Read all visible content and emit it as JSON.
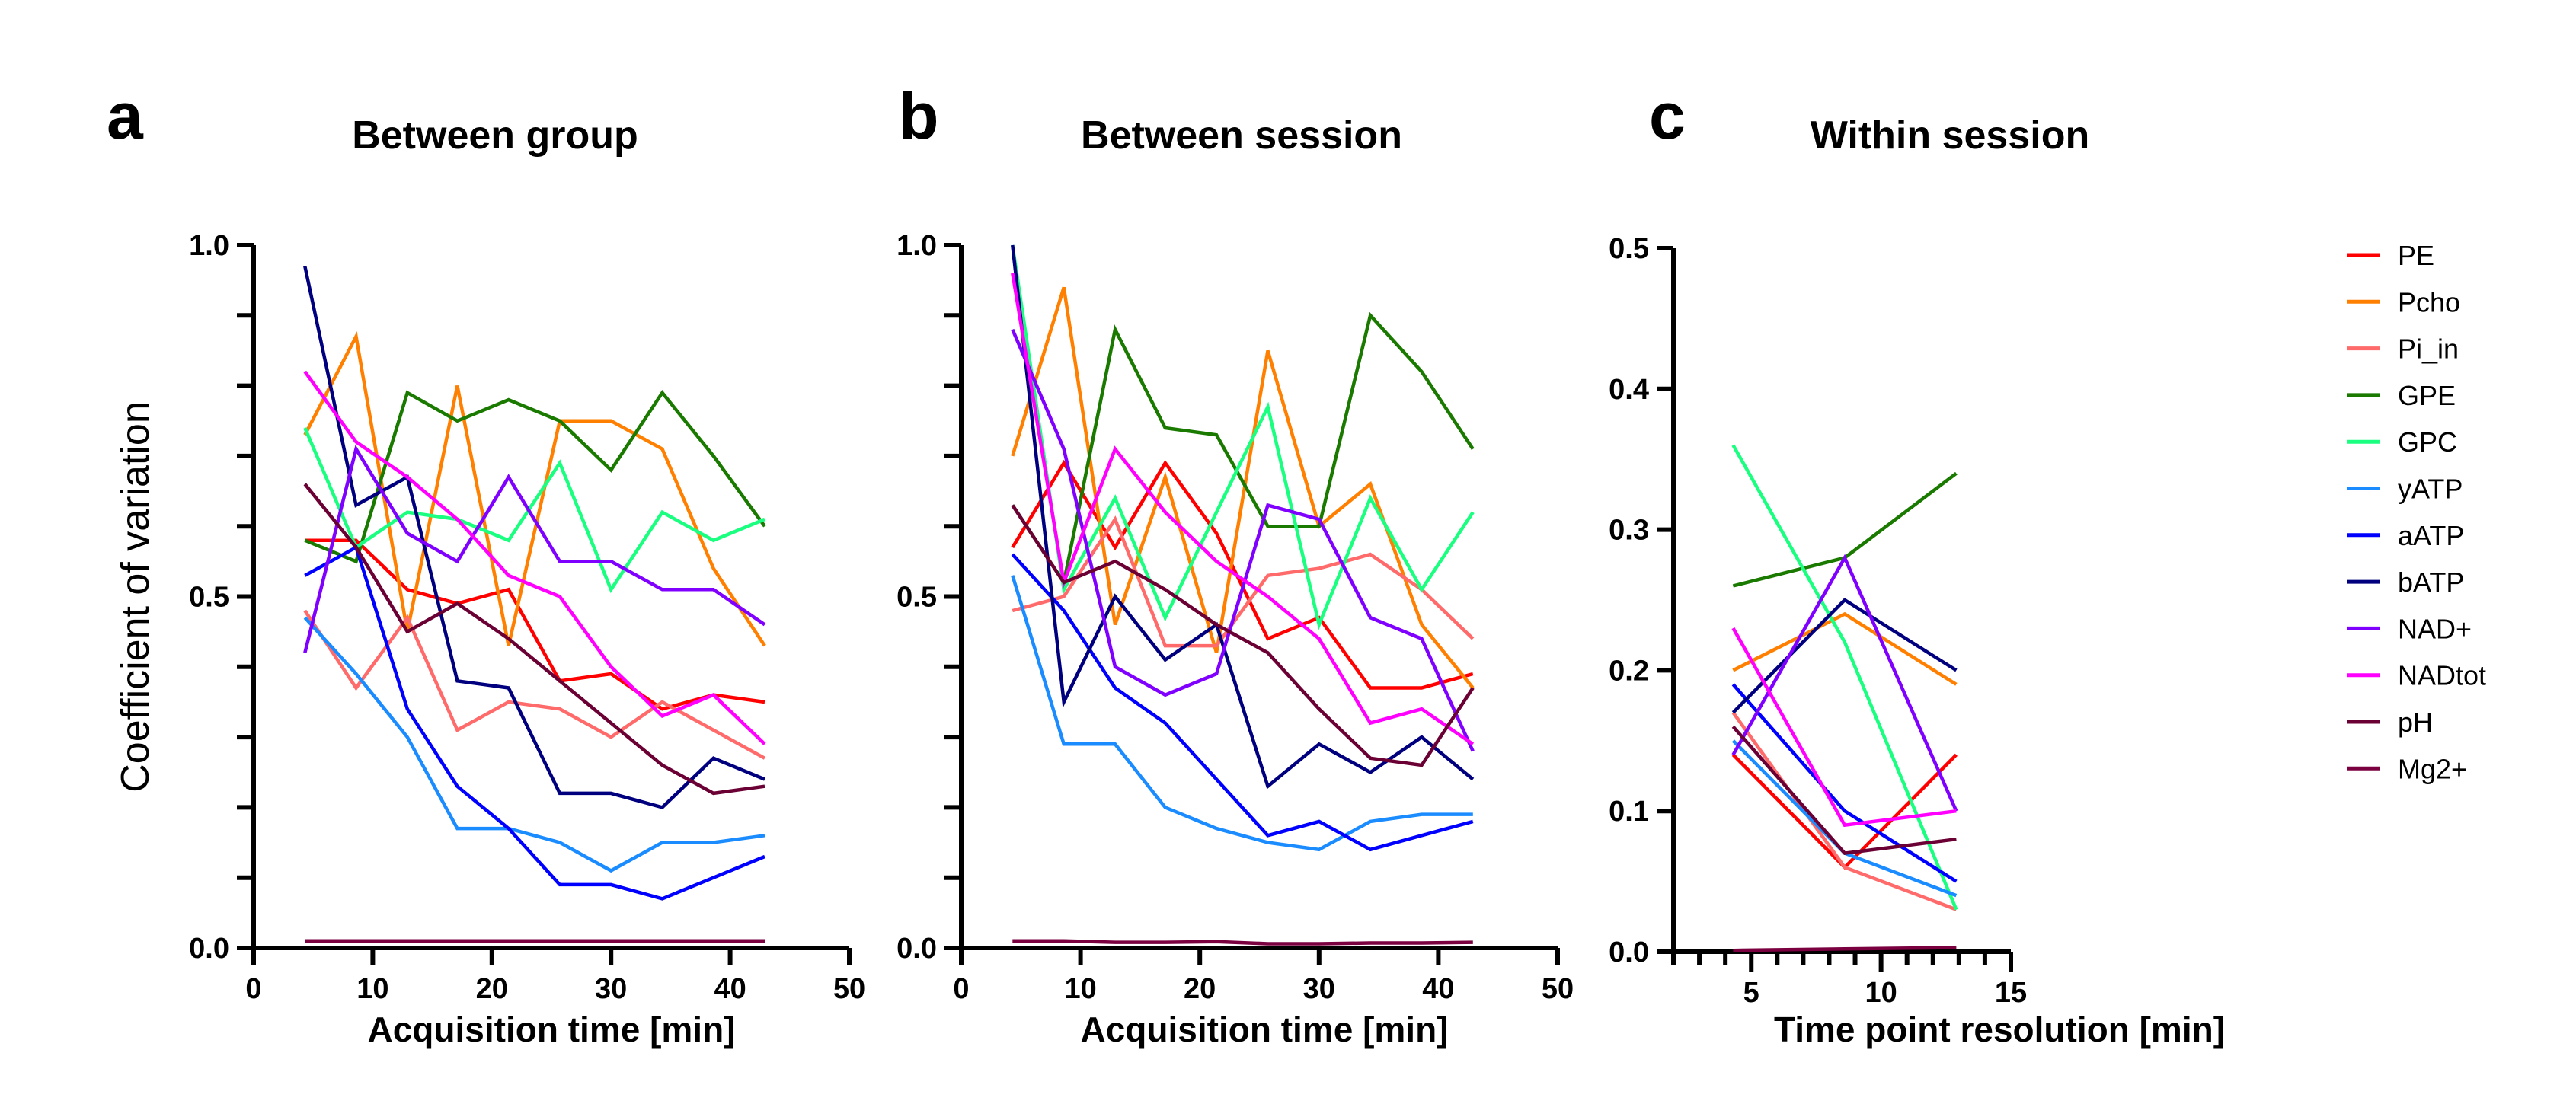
{
  "chart_data": [
    {
      "type": "line",
      "panel": "a",
      "title": "Between group",
      "xlabel": "Acquisition time [min]",
      "ylabel": "Coefficient of variation",
      "xlim": [
        0,
        50
      ],
      "ylim": [
        0,
        1.0
      ],
      "xticks": [
        "0",
        "10",
        "20",
        "30",
        "40",
        "50"
      ],
      "yticks": [
        "0.0",
        "0.5",
        "1.0"
      ],
      "x": [
        4.3,
        8.6,
        12.9,
        17.1,
        21.4,
        25.7,
        30,
        34.3,
        38.6,
        42.9
      ],
      "series": [
        {
          "name": "PE",
          "values": [
            0.58,
            0.58,
            0.51,
            0.49,
            0.51,
            0.38,
            0.39,
            0.34,
            0.36,
            0.35
          ]
        },
        {
          "name": "Pcho",
          "values": [
            0.73,
            0.87,
            0.45,
            0.8,
            0.43,
            0.75,
            0.75,
            0.71,
            0.54,
            0.43
          ]
        },
        {
          "name": "Pi_in",
          "values": [
            0.48,
            0.37,
            0.47,
            0.31,
            0.35,
            0.34,
            0.3,
            0.35,
            0.31,
            0.27
          ]
        },
        {
          "name": "GPE",
          "values": [
            0.58,
            0.55,
            0.79,
            0.75,
            0.78,
            0.75,
            0.68,
            0.79,
            0.7,
            0.6
          ]
        },
        {
          "name": "GPC",
          "values": [
            0.74,
            0.57,
            0.62,
            0.61,
            0.58,
            0.69,
            0.51,
            0.62,
            0.58,
            0.61
          ]
        },
        {
          "name": "yATP",
          "values": [
            0.47,
            0.39,
            0.3,
            0.17,
            0.17,
            0.15,
            0.11,
            0.15,
            0.15,
            0.16
          ]
        },
        {
          "name": "aATP",
          "values": [
            0.53,
            0.57,
            0.34,
            0.23,
            0.17,
            0.09,
            0.09,
            0.07,
            0.1,
            0.13
          ]
        },
        {
          "name": "bATP",
          "values": [
            0.97,
            0.63,
            0.67,
            0.38,
            0.37,
            0.22,
            0.22,
            0.2,
            0.27,
            0.24
          ]
        },
        {
          "name": "NAD+",
          "values": [
            0.42,
            0.71,
            0.59,
            0.55,
            0.67,
            0.55,
            0.55,
            0.51,
            0.51,
            0.46
          ]
        },
        {
          "name": "NADtot",
          "values": [
            0.82,
            0.72,
            0.67,
            0.61,
            0.53,
            0.5,
            0.4,
            0.33,
            0.36,
            0.29
          ]
        },
        {
          "name": "pH",
          "values": [
            0.66,
            0.57,
            0.45,
            0.49,
            0.44,
            0.38,
            0.32,
            0.26,
            0.22,
            0.23
          ]
        },
        {
          "name": "Mg2+",
          "values": [
            0.01,
            0.01,
            0.01,
            0.01,
            0.01,
            0.01,
            0.01,
            0.01,
            0.01,
            0.01
          ]
        }
      ]
    },
    {
      "type": "line",
      "panel": "b",
      "title": "Between session",
      "xlabel": "Acquisition time [min]",
      "ylabel": "",
      "xlim": [
        0,
        50
      ],
      "ylim": [
        0,
        1.0
      ],
      "xticks": [
        "0",
        "10",
        "20",
        "30",
        "40",
        "50"
      ],
      "yticks": [
        "0.0",
        "0.5",
        "1.0"
      ],
      "x": [
        4.3,
        8.6,
        12.9,
        17.1,
        21.4,
        25.7,
        30,
        34.3,
        38.6,
        42.9
      ],
      "series": [
        {
          "name": "PE",
          "values": [
            0.57,
            0.69,
            0.57,
            0.69,
            0.59,
            0.44,
            0.47,
            0.37,
            0.37,
            0.39
          ]
        },
        {
          "name": "Pcho",
          "values": [
            0.7,
            0.94,
            0.46,
            0.67,
            0.42,
            0.85,
            0.6,
            0.66,
            0.46,
            0.37
          ]
        },
        {
          "name": "Pi_in",
          "values": [
            0.48,
            0.5,
            0.61,
            0.43,
            0.43,
            0.53,
            0.54,
            0.56,
            0.51,
            0.44
          ]
        },
        {
          "name": "GPE",
          "values": [
            0.63,
            0.52,
            0.88,
            0.74,
            0.73,
            0.6,
            0.6,
            0.9,
            0.82,
            0.71
          ]
        },
        {
          "name": "GPC",
          "values": [
            1.0,
            0.51,
            0.64,
            0.47,
            0.62,
            0.77,
            0.46,
            0.64,
            0.51,
            0.62
          ]
        },
        {
          "name": "yATP",
          "values": [
            0.53,
            0.29,
            0.29,
            0.2,
            0.17,
            0.15,
            0.14,
            0.18,
            0.19,
            0.19
          ]
        },
        {
          "name": "aATP",
          "values": [
            0.56,
            0.48,
            0.37,
            0.32,
            0.24,
            0.16,
            0.18,
            0.14,
            0.16,
            0.18
          ]
        },
        {
          "name": "bATP",
          "values": [
            1.0,
            0.35,
            0.5,
            0.41,
            0.46,
            0.23,
            0.29,
            0.25,
            0.3,
            0.24
          ]
        },
        {
          "name": "NAD+",
          "values": [
            0.88,
            0.71,
            0.4,
            0.36,
            0.39,
            0.63,
            0.61,
            0.47,
            0.44,
            0.28
          ]
        },
        {
          "name": "NADtot",
          "values": [
            0.96,
            0.52,
            0.71,
            0.62,
            0.55,
            0.5,
            0.44,
            0.32,
            0.34,
            0.29
          ]
        },
        {
          "name": "pH",
          "values": [
            0.63,
            0.52,
            0.55,
            0.51,
            0.46,
            0.42,
            0.34,
            0.27,
            0.26,
            0.37
          ]
        },
        {
          "name": "Mg2+",
          "values": [
            0.01,
            0.01,
            0.008,
            0.008,
            0.009,
            0.006,
            0.006,
            0.007,
            0.007,
            0.008
          ]
        }
      ]
    },
    {
      "type": "line",
      "panel": "c",
      "title": "Within session",
      "xlabel": "Time point resolution [min]",
      "ylabel": "",
      "xlim": [
        2,
        15
      ],
      "ylim": [
        0,
        0.5
      ],
      "xticks": [
        "5",
        "10",
        "15"
      ],
      "yticks": [
        "0.0",
        "0.1",
        "0.2",
        "0.3",
        "0.4",
        "0.5"
      ],
      "x": [
        4.3,
        8.6,
        12.9
      ],
      "series": [
        {
          "name": "PE",
          "values": [
            0.14,
            0.06,
            0.14
          ]
        },
        {
          "name": "Pcho",
          "values": [
            0.2,
            0.24,
            0.19
          ]
        },
        {
          "name": "Pi_in",
          "values": [
            0.17,
            0.06,
            0.03
          ]
        },
        {
          "name": "GPE",
          "values": [
            0.26,
            0.28,
            0.34
          ]
        },
        {
          "name": "GPC",
          "values": [
            0.36,
            0.22,
            0.03
          ]
        },
        {
          "name": "yATP",
          "values": [
            0.15,
            0.07,
            0.04
          ]
        },
        {
          "name": "aATP",
          "values": [
            0.19,
            0.1,
            0.05
          ]
        },
        {
          "name": "bATP",
          "values": [
            0.17,
            0.25,
            0.2
          ]
        },
        {
          "name": "NAD+",
          "values": [
            0.14,
            0.28,
            0.1
          ]
        },
        {
          "name": "NADtot",
          "values": [
            0.23,
            0.09,
            0.1
          ]
        },
        {
          "name": "pH",
          "values": [
            0.16,
            0.07,
            0.08
          ]
        },
        {
          "name": "Mg2+",
          "values": [
            0.001,
            0.002,
            0.003
          ]
        }
      ]
    }
  ],
  "legend": {
    "placement": "right",
    "entries": [
      {
        "name": "PE",
        "color": "#ff0000"
      },
      {
        "name": "Pcho",
        "color": "#ff8000"
      },
      {
        "name": "Pi_in",
        "color": "#ff6a6a"
      },
      {
        "name": "GPE",
        "color": "#1a7a00"
      },
      {
        "name": "GPC",
        "color": "#1aff80"
      },
      {
        "name": "yATP",
        "color": "#1a8cff"
      },
      {
        "name": "aATP",
        "color": "#0000ff"
      },
      {
        "name": "bATP",
        "color": "#00007f"
      },
      {
        "name": "NAD+",
        "color": "#8000ff"
      },
      {
        "name": "NADtot",
        "color": "#ff00ff"
      },
      {
        "name": "pH",
        "color": "#6a0033"
      },
      {
        "name": "Mg2+",
        "color": "#7a0040"
      }
    ]
  },
  "panels": {
    "a": {
      "letter": "a"
    },
    "b": {
      "letter": "b"
    },
    "c": {
      "letter": "c"
    }
  }
}
